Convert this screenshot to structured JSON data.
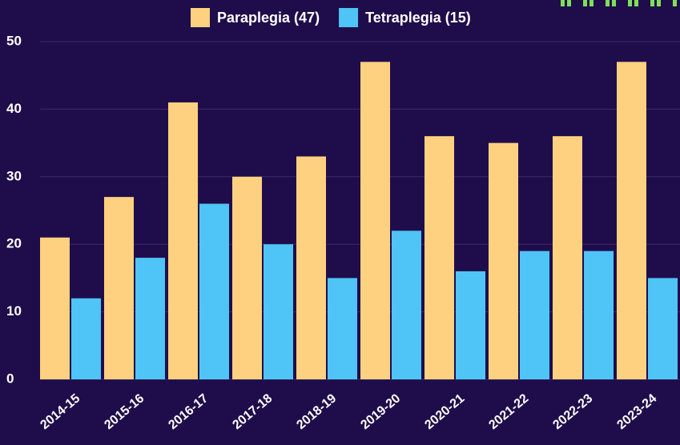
{
  "chart_data": {
    "type": "bar",
    "categories": [
      "2014-15",
      "2015-16",
      "2016-17",
      "2017-18",
      "2018-19",
      "2019-20",
      "2020-21",
      "2021-22",
      "2022-23",
      "2023-24"
    ],
    "series": [
      {
        "name": "Paraplegia (47)",
        "color": "#fdd17f",
        "values": [
          21,
          27,
          41,
          30,
          33,
          47,
          36,
          35,
          36,
          47
        ]
      },
      {
        "name": "Tetraplegia (15)",
        "color": "#4fc4f6",
        "values": [
          12,
          18,
          26,
          20,
          15,
          22,
          16,
          19,
          19,
          15
        ]
      }
    ],
    "ylim": [
      0,
      50
    ],
    "yticks": [
      0,
      10,
      20,
      30,
      40,
      50
    ],
    "grid": true,
    "legend": "top"
  }
}
